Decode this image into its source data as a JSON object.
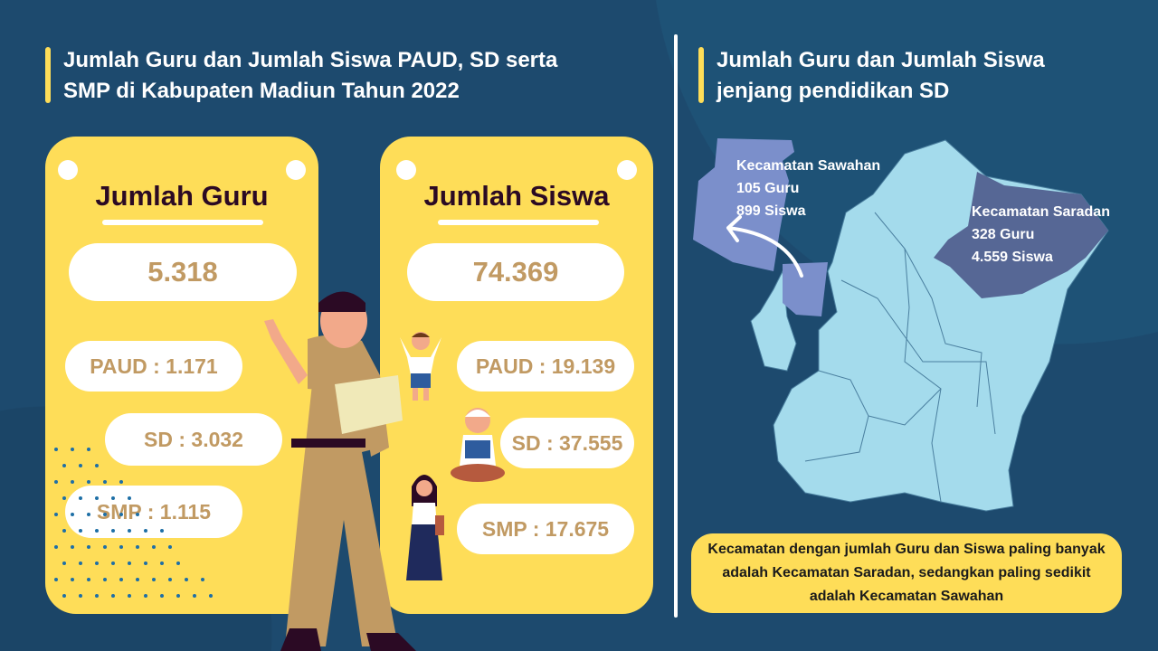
{
  "left": {
    "title_line1": "Jumlah Guru dan Jumlah Siswa PAUD, SD serta",
    "title_line2": "SMP di Kabupaten Madiun Tahun 2022",
    "guru": {
      "heading": "Jumlah Guru",
      "total": "5.318",
      "paud": "PAUD : 1.171",
      "sd": "SD : 3.032",
      "smp": "SMP : 1.115"
    },
    "siswa": {
      "heading": "Jumlah Siswa",
      "total": "74.369",
      "paud": "PAUD : 19.139",
      "sd": "SD : 37.555",
      "smp": "SMP : 17.675"
    }
  },
  "right": {
    "title_line1": "Jumlah Guru dan Jumlah Siswa",
    "title_line2": "jenjang pendidikan SD",
    "sawahan": {
      "name": "Kecamatan Sawahan",
      "guru": "105 Guru",
      "siswa": "899 Siswa"
    },
    "saradan": {
      "name": "Kecamatan Saradan",
      "guru": "328 Guru",
      "siswa": "4.559 Siswa"
    },
    "note": "Kecamatan dengan jumlah Guru dan Siswa paling banyak adalah Kecamatan Saradan, sedangkan paling sedikit adalah Kecamatan Sawahan"
  },
  "colors": {
    "background": "#1d4a6e",
    "card": "#fedd58",
    "value_text": "#c19a63",
    "map_region": "#a4dbec",
    "map_sawahan": "#7b8fcb",
    "map_saradan": "#566795"
  }
}
